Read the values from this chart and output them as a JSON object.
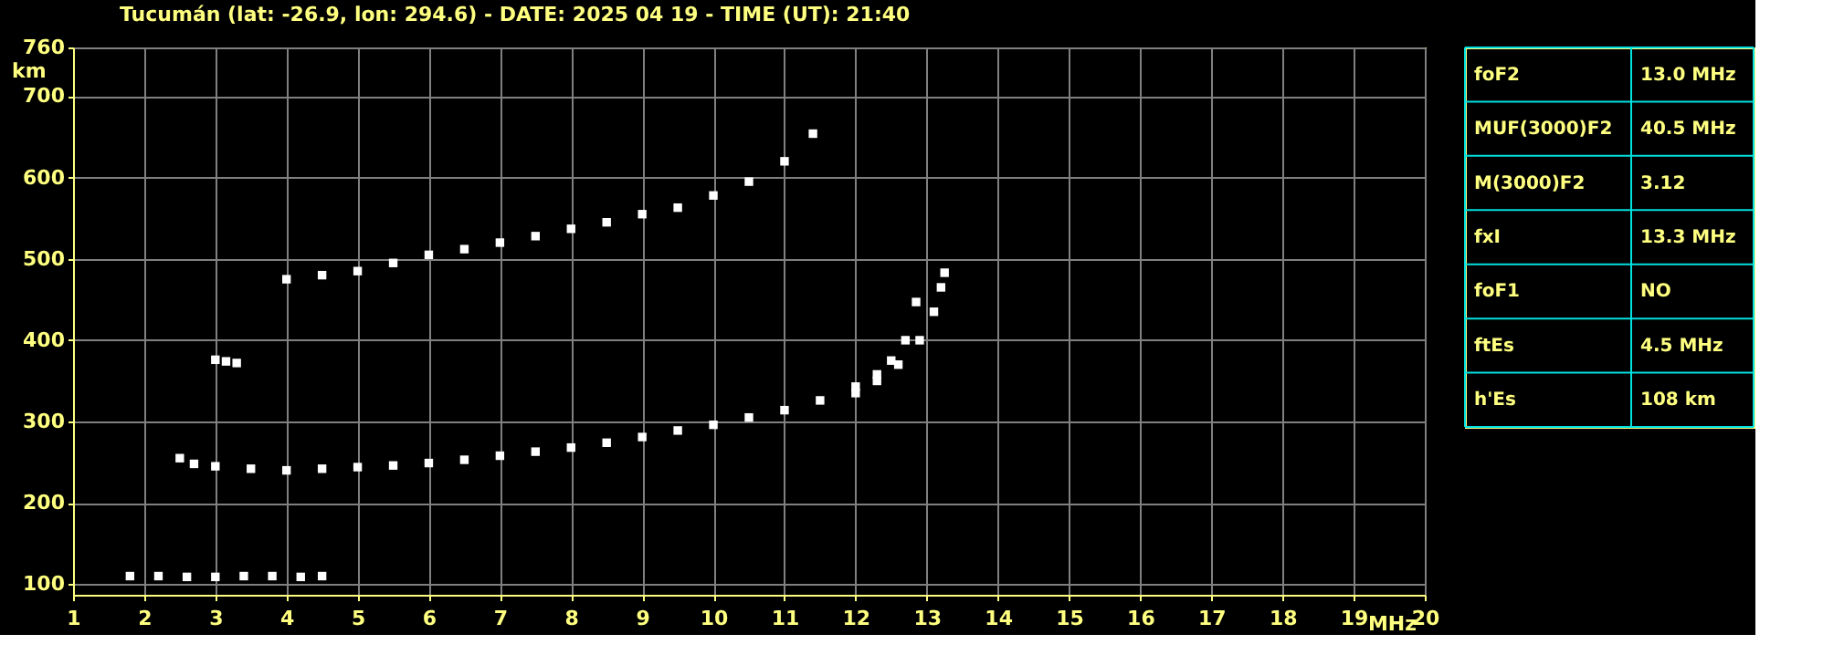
{
  "chart_data": [
    {
      "type": "scatter",
      "title": "Tucumán (lat: -26.9, lon: 294.6) - DATE: 2025 04 19 - TIME (UT): 21:40",
      "xlabel": "MHz",
      "ylabel": "km",
      "xlim": [
        1,
        20
      ],
      "ylim": [
        87,
        760
      ],
      "xticks": [
        1,
        2,
        3,
        4,
        5,
        6,
        7,
        8,
        9,
        10,
        11,
        12,
        13,
        14,
        15,
        16,
        17,
        18,
        19,
        20
      ],
      "yticks": [
        100,
        200,
        300,
        400,
        500,
        600,
        700,
        760
      ],
      "grid": true,
      "legend": false,
      "marker": "square",
      "series": [
        {
          "color": "#ffffff",
          "x": [
            1.8,
            2.2,
            2.6,
            3.0,
            3.4,
            3.8,
            4.2,
            4.5
          ],
          "values": [
            110,
            110,
            109,
            109,
            110,
            110,
            109,
            110
          ]
        },
        {
          "color": "#ffffff",
          "x": [
            2.5,
            2.7,
            3.0,
            3.5,
            4.0,
            4.5,
            5.0,
            5.5,
            6.0,
            6.5,
            7.0,
            7.5,
            8.0,
            8.5,
            9.0,
            9.5,
            10.0,
            10.5,
            11.0,
            11.5,
            12.0,
            12.3,
            12.5,
            12.7,
            12.85
          ],
          "values": [
            255,
            248,
            245,
            242,
            240,
            242,
            244,
            246,
            249,
            253,
            258,
            263,
            268,
            274,
            281,
            289,
            296,
            305,
            314,
            326,
            343,
            358,
            375,
            400,
            447
          ]
        },
        {
          "color": "#ffffff",
          "x": [
            12.0,
            12.3,
            12.6,
            12.9,
            13.1,
            13.2,
            13.25
          ],
          "values": [
            335,
            350,
            370,
            400,
            435,
            465,
            483
          ]
        },
        {
          "color": "#ffffff",
          "x": [
            3.0,
            3.15,
            3.3
          ],
          "values": [
            376,
            374,
            372
          ]
        },
        {
          "color": "#ffffff",
          "x": [
            4.0,
            4.5,
            5.0,
            5.5,
            6.0,
            6.5,
            7.0,
            7.5,
            8.0,
            8.5,
            9.0,
            9.5,
            10.0,
            10.5,
            11.0,
            11.4
          ],
          "values": [
            475,
            480,
            485,
            495,
            505,
            512,
            520,
            528,
            537,
            545,
            555,
            563,
            578,
            595,
            620,
            654
          ]
        }
      ]
    },
    {
      "type": "other",
      "annotations": [
        "foF2",
        "13.0 MHz",
        "MUF(3000)F2",
        "40.5 MHz",
        "M(3000)F2",
        "3.12",
        "fxI",
        "13.3 MHz",
        "foF1",
        "NO",
        "ftEs",
        "4.5 MHz",
        "h'Es",
        "108 km"
      ]
    }
  ]
}
